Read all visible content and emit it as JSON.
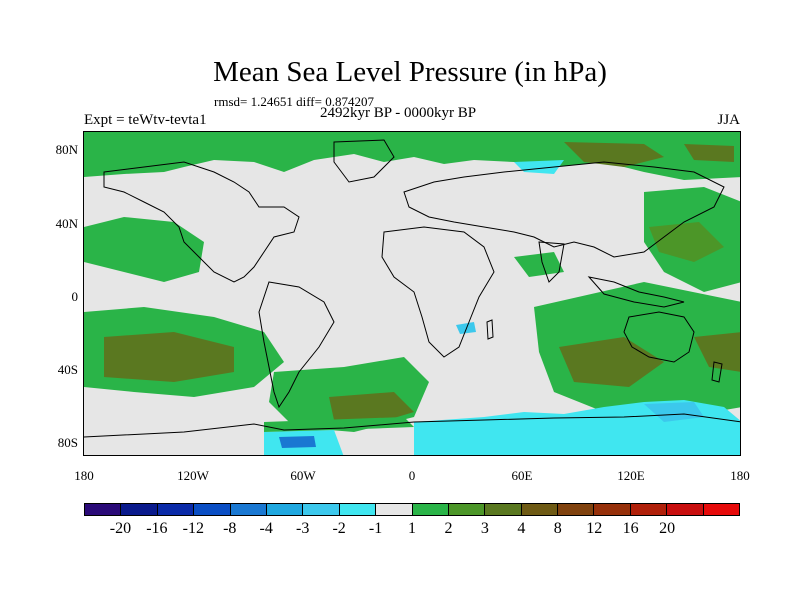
{
  "title": "Mean Sea Level Pressure (in hPa)",
  "stats": "rmsd= 1.24651 diff= 0.874207",
  "experiment": "Expt = teWtv-tevta1",
  "period": "2492kyr BP - 0000kyr BP",
  "season": "JJA",
  "lat_labels": [
    "80N",
    "40N",
    "0",
    "40S",
    "80S"
  ],
  "lon_labels": [
    "180",
    "120W",
    "60W",
    "0",
    "60E",
    "120E",
    "180"
  ],
  "colorbar": {
    "colors": [
      "#2a0a78",
      "#0a1a8c",
      "#0a2aa8",
      "#0a4ec4",
      "#1a78d2",
      "#20a8e0",
      "#3cc8ec",
      "#40e6f0",
      "#e6e6e6",
      "#2ab448",
      "#4c9628",
      "#5a7820",
      "#6e5a14",
      "#80420e",
      "#96300a",
      "#b0200a",
      "#c80e0e",
      "#e60a0a"
    ],
    "labels": [
      "-20",
      "-16",
      "-12",
      "-8",
      "-4",
      "-3",
      "-2",
      "-1",
      "1",
      "2",
      "3",
      "4",
      "8",
      "12",
      "16",
      "20"
    ]
  },
  "map_colors": {
    "neutral": "#e6e6e6",
    "green": "#2ab448",
    "olive": "#4c9628",
    "brown": "#5a7820",
    "cyan": "#40e6f0",
    "lightblue": "#3cc8ec",
    "blue": "#1a78d2"
  }
}
